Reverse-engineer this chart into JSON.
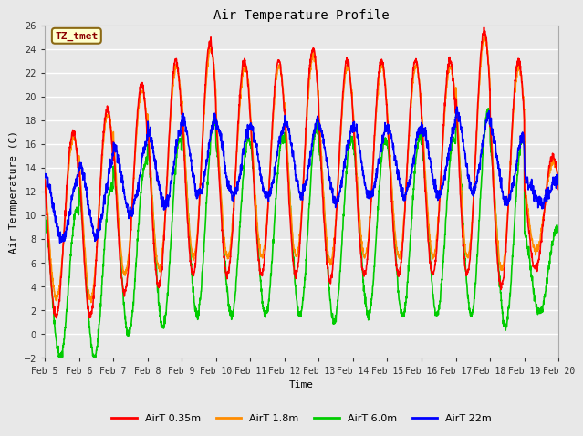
{
  "title": "Air Temperature Profile",
  "xlabel": "Time",
  "ylabel": "Air Termperature (C)",
  "ylim": [
    -2,
    26
  ],
  "yticks": [
    -2,
    0,
    2,
    4,
    6,
    8,
    10,
    12,
    14,
    16,
    18,
    20,
    22,
    24,
    26
  ],
  "xtick_labels": [
    "Feb 5",
    "Feb 6",
    "Feb 7",
    "Feb 8",
    "Feb 9",
    "Feb 10",
    "Feb 11",
    "Feb 12",
    "Feb 13",
    "Feb 14",
    "Feb 15",
    "Feb 16",
    "Feb 17",
    "Feb 18",
    "Feb 19",
    "Feb 20"
  ],
  "annotation_text": "TZ_tmet",
  "annotation_color": "#8B0000",
  "annotation_bg": "#FFFFCC",
  "bg_color": "#E8E8E8",
  "plot_bg": "#E8E8E8",
  "grid_color": "#FFFFFF",
  "line_colors": {
    "AirT 0.35m": "#FF0000",
    "AirT 1.8m": "#FF8C00",
    "AirT 6.0m": "#00CC00",
    "AirT 22m": "#0000FF"
  },
  "legend_labels": [
    "AirT 0.35m",
    "AirT 1.8m",
    "AirT 6.0m",
    "AirT 22m"
  ],
  "line_width": 1.2,
  "num_days": 15,
  "points_per_day": 144
}
